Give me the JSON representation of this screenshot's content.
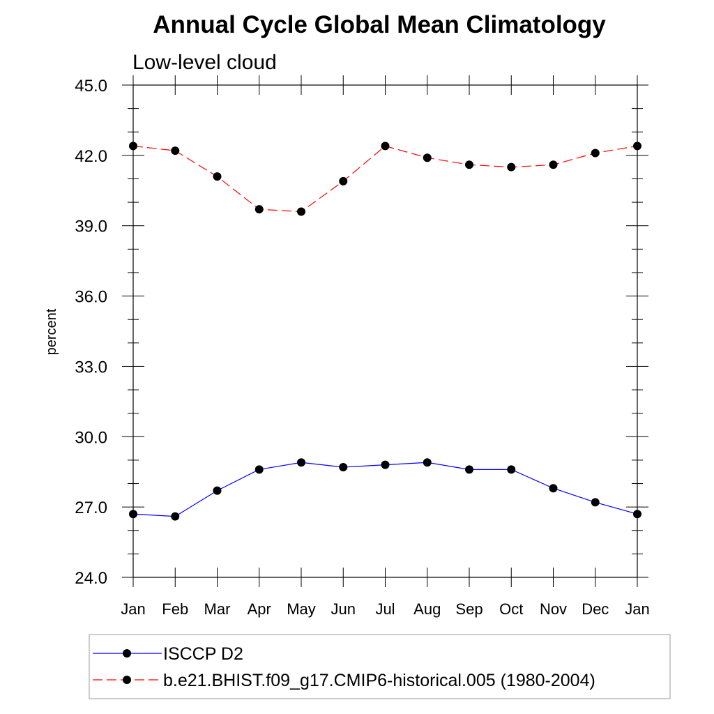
{
  "chart_data": {
    "type": "line",
    "title": "Annual Cycle Global Mean Climatology",
    "subtitle": "Low-level cloud",
    "xlabel": "",
    "ylabel": "percent",
    "categories": [
      "Jan",
      "Feb",
      "Mar",
      "Apr",
      "May",
      "Jun",
      "Jul",
      "Aug",
      "Sep",
      "Oct",
      "Nov",
      "Dec",
      "Jan"
    ],
    "ylim": [
      24.0,
      45.0
    ],
    "yticks": [
      "24.0",
      "27.0",
      "30.0",
      "33.0",
      "36.0",
      "39.0",
      "42.0",
      "45.0"
    ],
    "grid": false,
    "legend_position": "bottom",
    "series": [
      {
        "name": "ISCCP D2",
        "color": "#0000ff",
        "line_style": "solid",
        "marker": "filled-circle",
        "values": [
          26.7,
          26.6,
          27.7,
          28.6,
          28.9,
          28.7,
          28.8,
          28.9,
          28.6,
          28.6,
          27.8,
          27.2,
          26.7
        ]
      },
      {
        "name": "b.e21.BHIST.f09_g17.CMIP6-historical.005 (1980-2004)",
        "color": "#ff0000",
        "line_style": "dashed",
        "marker": "filled-circle",
        "values": [
          42.4,
          42.2,
          41.1,
          39.7,
          39.6,
          40.9,
          42.4,
          41.9,
          41.6,
          41.5,
          41.6,
          42.1,
          42.4
        ]
      }
    ]
  }
}
